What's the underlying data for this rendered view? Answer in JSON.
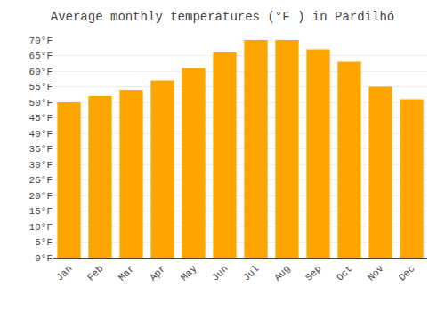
{
  "chart_data": {
    "type": "bar",
    "title": "Average monthly temperatures (°F ) in Pardilhó",
    "categories": [
      "Jan",
      "Feb",
      "Mar",
      "Apr",
      "May",
      "Jun",
      "Jul",
      "Aug",
      "Sep",
      "Oct",
      "Nov",
      "Dec"
    ],
    "values": [
      50,
      52,
      54,
      57,
      61,
      66,
      70,
      70,
      67,
      63,
      55,
      51
    ],
    "color": "#FFA500",
    "ylim": [
      0,
      70
    ],
    "yticks": [
      {
        "value": 0,
        "label": "0°F"
      },
      {
        "value": 5,
        "label": "5°F"
      },
      {
        "value": 10,
        "label": "10°F"
      },
      {
        "value": 15,
        "label": "15°F"
      },
      {
        "value": 20,
        "label": "20°F"
      },
      {
        "value": 25,
        "label": "25°F"
      },
      {
        "value": 30,
        "label": "30°F"
      },
      {
        "value": 35,
        "label": "35°F"
      },
      {
        "value": 40,
        "label": "40°F"
      },
      {
        "value": 45,
        "label": "45°F"
      },
      {
        "value": 50,
        "label": "50°F"
      },
      {
        "value": 55,
        "label": "55°F"
      },
      {
        "value": 60,
        "label": "60°F"
      },
      {
        "value": 65,
        "label": "65°F"
      },
      {
        "value": 70,
        "label": "70°F"
      }
    ],
    "grid": true
  }
}
